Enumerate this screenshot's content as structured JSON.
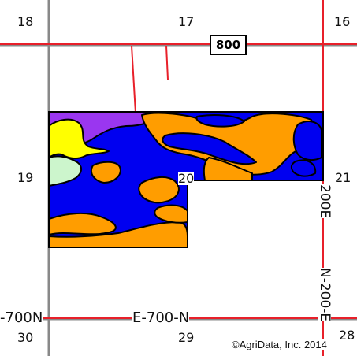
{
  "map": {
    "sections": {
      "s18": "18",
      "s17": "17",
      "s16": "16",
      "s19": "19",
      "s20": "20",
      "s21": "21",
      "s30": "30",
      "s29": "29",
      "s28": "28"
    },
    "highway_shield": "800",
    "roads": {
      "west_700n": "-700N",
      "e_700_n": "E-700-N",
      "n_200_e": "N-200-E",
      "e_200": "200E"
    },
    "copyright": "©AgriData, Inc. 2014",
    "colors": {
      "background": "#ffffff",
      "road": "#e8202a",
      "section_line": "#888888",
      "soil_blue": "#0000f0",
      "soil_orange": "#ff9d00",
      "soil_purple": "#9a36f0",
      "soil_yellow": "#ffff00",
      "soil_lightgreen": "#ccf5cc",
      "boundary": "#000000"
    }
  }
}
